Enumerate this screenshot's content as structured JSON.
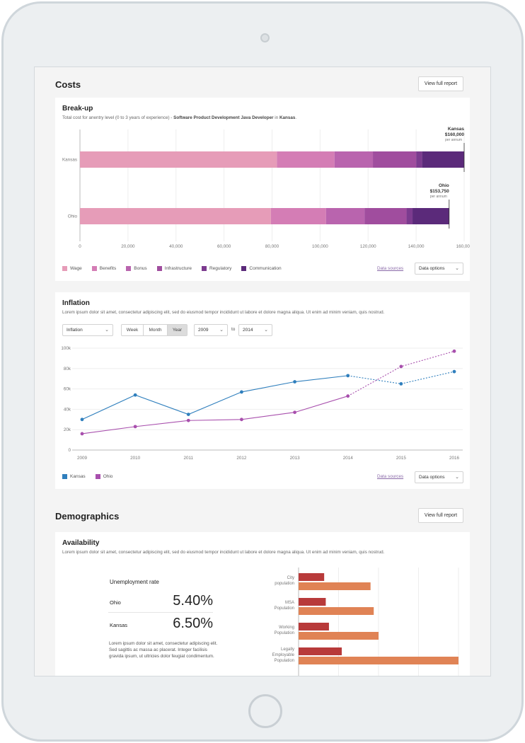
{
  "costs": {
    "title": "Costs",
    "view_full_report": "View full report",
    "breakup": {
      "title": "Break-up",
      "subtitle_prefix": "Total cost for anentry level (0 to 3 years of experience) - ",
      "subtitle_role": "Software Product Development Java Developer",
      "subtitle_in": " in ",
      "subtitle_location": "Kansas",
      "subtitle_end": ".",
      "data_sources": "Data sources",
      "data_options": "Data options"
    }
  },
  "breakup_chart": {
    "type": "bar",
    "orientation": "horizontal-stacked",
    "categories": [
      "Kansas",
      "Ohio"
    ],
    "components": [
      "Wage",
      "Benefits",
      "Bonus",
      "Infrastructure",
      "Regulatory",
      "Communication"
    ],
    "colors": [
      "#e69cb8",
      "#d47db5",
      "#b964ae",
      "#a04d9e",
      "#7c3b8f",
      "#5b2a7a"
    ],
    "series": [
      {
        "name": "Wage",
        "values": [
          82000,
          79500
        ]
      },
      {
        "name": "Benefits",
        "values": [
          24000,
          23000
        ]
      },
      {
        "name": "Bonus",
        "values": [
          16000,
          16000
        ]
      },
      {
        "name": "Infrastructure",
        "values": [
          18000,
          17500
        ]
      },
      {
        "name": "Regulatory",
        "values": [
          2500,
          2500
        ]
      },
      {
        "name": "Communication",
        "values": [
          17500,
          15250
        ]
      }
    ],
    "totals": [
      {
        "state": "Kansas",
        "amount": "$160,000",
        "unit": "per annum"
      },
      {
        "state": "Ohio",
        "amount": "$153,750",
        "unit": "per annum"
      }
    ],
    "xlim": [
      0,
      160000
    ],
    "xticks": [
      "0",
      "20,000",
      "40,000",
      "60,000",
      "80,000",
      "100,000",
      "120,000",
      "140,000",
      "160,000"
    ]
  },
  "inflation": {
    "title": "Inflation",
    "subtitle": "Lorem ipsum dolor sit amet, consectetur adipiscing elit, sed do eiusmod tempor incididunt ut labore et dolore magna aliqua. Ut enim ad minim veniam, quis nostrud.",
    "metric_select": "Inflation",
    "periods": [
      "Week",
      "Month",
      "Year"
    ],
    "selected_period": "Year",
    "from_year": "2009",
    "to_label": "to",
    "to_year": "2014",
    "data_sources": "Data sources",
    "data_options": "Data options"
  },
  "inflation_chart": {
    "type": "line",
    "x": [
      "2009",
      "2010",
      "2011",
      "2012",
      "2013",
      "2014",
      "2015",
      "2016"
    ],
    "yticks": [
      "0",
      "20k",
      "40k",
      "60k",
      "80k",
      "100k"
    ],
    "ylim": [
      0,
      100000
    ],
    "projection_start_index": 5,
    "series": [
      {
        "name": "Kansas",
        "color": "#2f7fbd",
        "values": [
          30000,
          54000,
          35000,
          57000,
          67000,
          73000,
          65000,
          77000
        ]
      },
      {
        "name": "Ohio",
        "color": "#a84fad",
        "values": [
          16000,
          23000,
          29000,
          30000,
          37000,
          53000,
          82000,
          97000
        ]
      }
    ]
  },
  "demographics": {
    "title": "Demographics",
    "view_full_report": "View full report",
    "availability": {
      "title": "Availability",
      "subtitle": "Lorem ipsum dolor sit amet, consectetur adipiscing elit, sed do eiusmod tempor incididunt ut labore et dolore magna aliqua. Ut enim ad minim veniam, quis nostrud.",
      "unemployment_title": "Unemployment rate",
      "rates": [
        {
          "state": "Ohio",
          "rate": "5.40%"
        },
        {
          "state": "Kansas",
          "rate": "6.50%"
        }
      ],
      "note": "Lorem ipsum dolor sit amet, consectetur adipiscing elit. Sed sagittis ac massa ac placerat. Integer facilisis gravida ipsum, ut ultricies dolor feugiat condimentum."
    }
  },
  "availability_chart": {
    "type": "bar",
    "orientation": "horizontal-grouped",
    "categories": [
      [
        "City",
        "population"
      ],
      [
        "MSA",
        "Population"
      ],
      [
        "Working",
        "Population"
      ],
      [
        "Legally",
        "Employable",
        "Population"
      ]
    ],
    "series": [
      {
        "color": "#b83a3a",
        "values": [
          16,
          17,
          19,
          27
        ]
      },
      {
        "color": "#e08355",
        "values": [
          45,
          47,
          50,
          100
        ]
      }
    ],
    "xlim": [
      0,
      100
    ]
  }
}
